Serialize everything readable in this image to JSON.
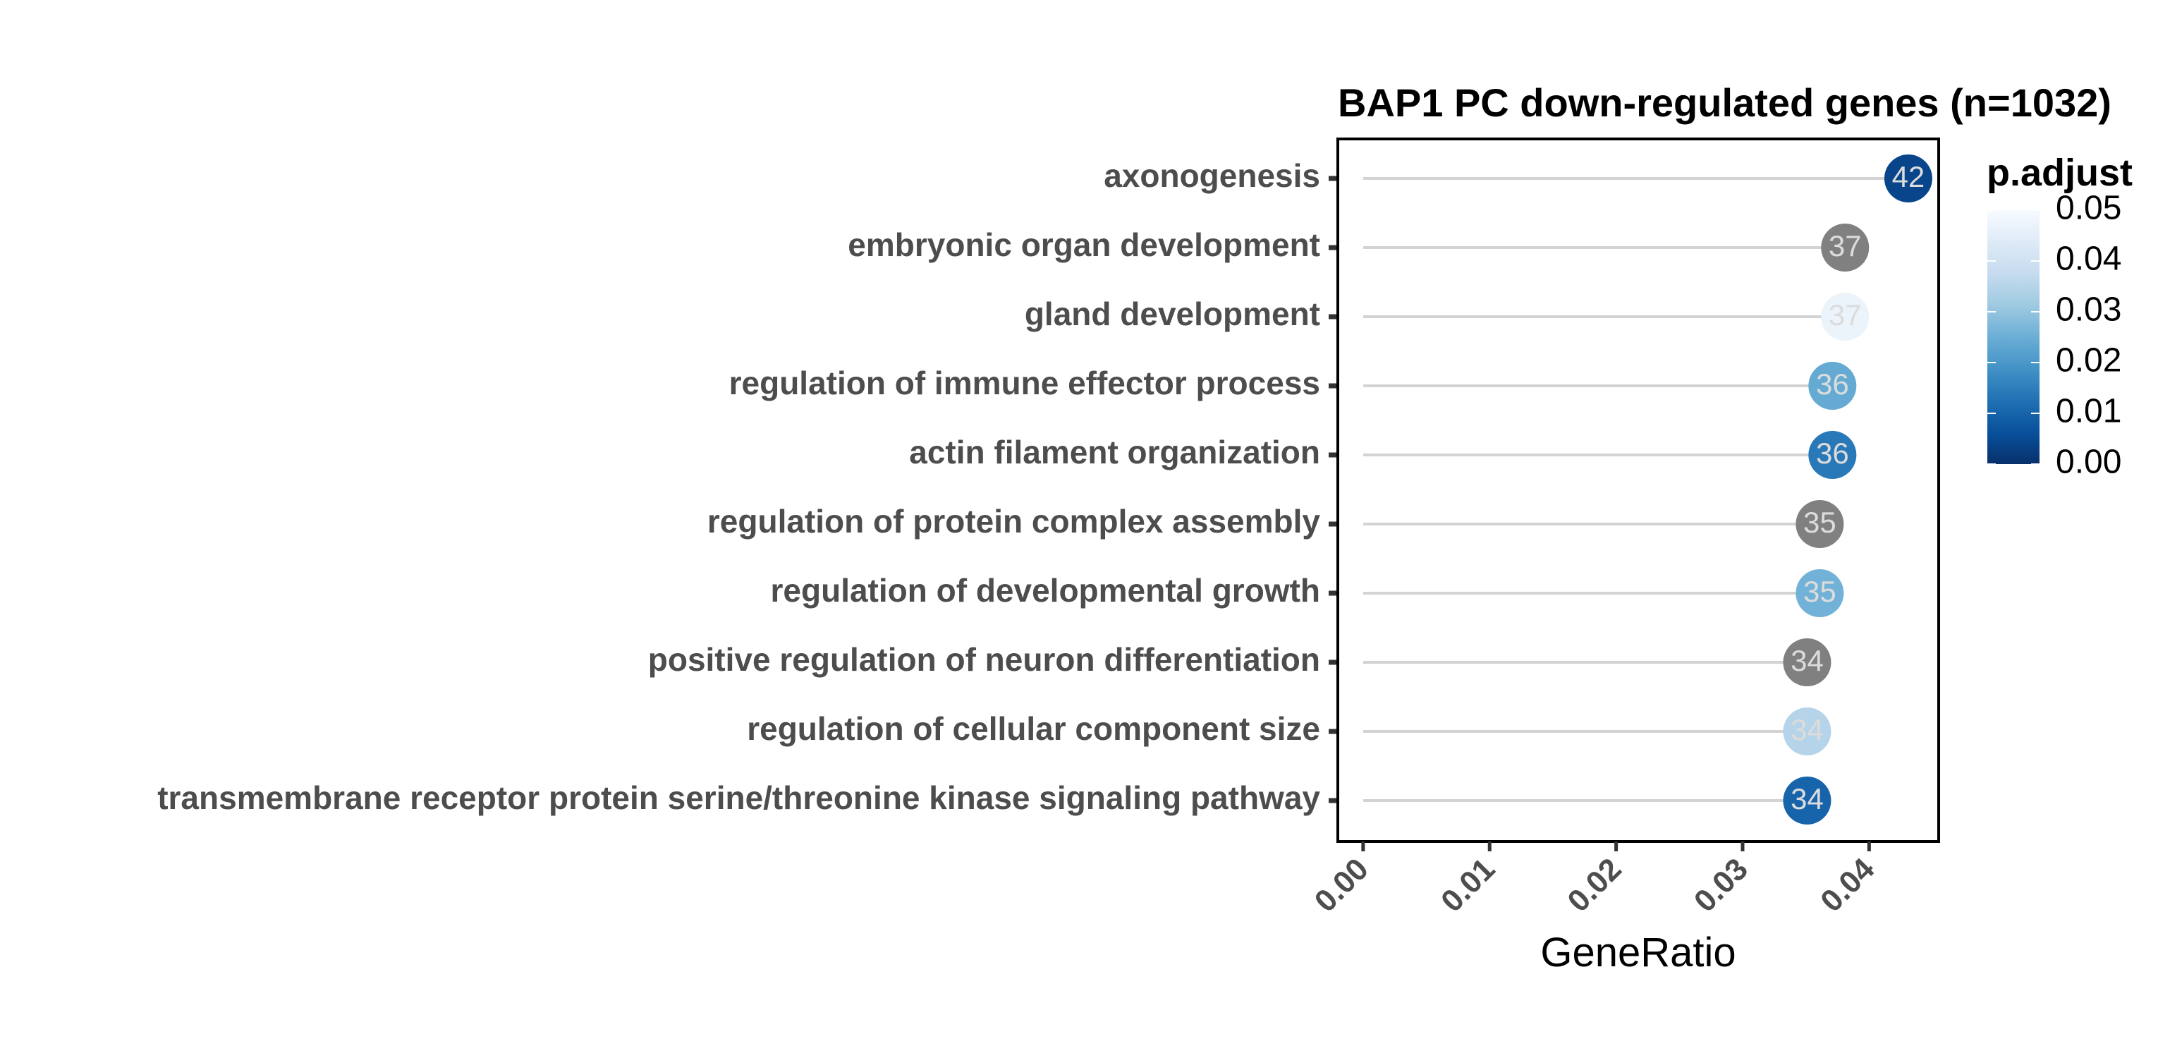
{
  "chart_data": {
    "type": "scatter",
    "subtype": "lollipop",
    "title": "BAP1 PC down-regulated genes (n=1032)",
    "xlabel": "GeneRatio",
    "ylabel": "",
    "xlim": [
      -0.002,
      0.0455
    ],
    "x_ticks": [
      "0.00",
      "0.01",
      "0.02",
      "0.03",
      "0.04"
    ],
    "grid": false,
    "legend": {
      "title": "p.adjust",
      "position": "right",
      "ticks": [
        "0.05",
        "0.04",
        "0.03",
        "0.02",
        "0.01",
        "0.00"
      ],
      "range": [
        0,
        0.05
      ],
      "colors": [
        "#08306b",
        "#08519c",
        "#2171b5",
        "#4292c6",
        "#6baed6",
        "#9ecae1",
        "#c6dbef",
        "#deebf7",
        "#f7fbff"
      ]
    },
    "na_color": "#808080",
    "categories": [
      "axonogenesis",
      "embryonic organ development",
      "gland development",
      "regulation of immune effector process",
      "actin filament organization",
      "regulation of protein complex assembly",
      "regulation of developmental growth",
      "positive regulation of neuron differentiation",
      "regulation of cellular component size",
      "transmembrane receptor protein serine/threonine kinase signaling pathway"
    ],
    "x": [
      0.0431,
      0.0381,
      0.0381,
      0.0371,
      0.0371,
      0.0361,
      0.0361,
      0.0351,
      0.0351,
      0.0351
    ],
    "counts": [
      "42",
      "37",
      "37",
      "36",
      "36",
      "35",
      "35",
      "34",
      "34",
      "34"
    ],
    "p_adjust": [
      0.004,
      null,
      0.047,
      0.024,
      0.014,
      null,
      0.026,
      null,
      0.035,
      0.01
    ]
  }
}
